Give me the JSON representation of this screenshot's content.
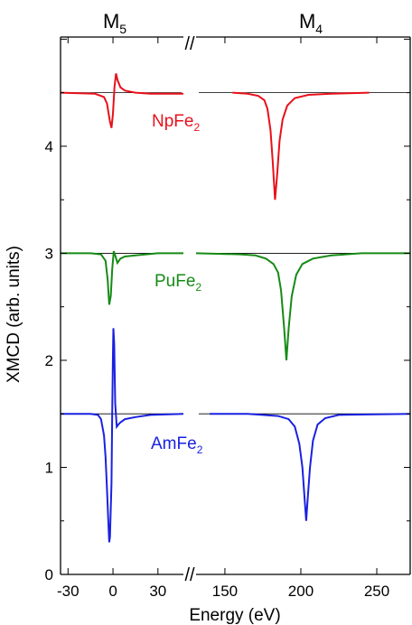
{
  "chart_data": {
    "type": "line",
    "title": "",
    "xlabel": "Energy (eV)",
    "ylabel": "XMCD (arb. units)",
    "edge_labels": {
      "left": "M",
      "left_sub": "5",
      "right": "M",
      "right_sub": "4"
    },
    "axis_break": "//",
    "panels": [
      {
        "name": "M5",
        "xlim": [
          -35,
          47
        ],
        "xticks": [
          -30,
          0,
          30
        ]
      },
      {
        "name": "M4",
        "xlim": [
          131,
          272
        ],
        "xticks": [
          150,
          200,
          250
        ]
      }
    ],
    "ylim": [
      0,
      5.02
    ],
    "yticks": [
      0,
      1,
      2,
      3,
      4
    ],
    "grid": false,
    "series": [
      {
        "name": "NpFe",
        "name_sub": "2",
        "color": "#e8101a",
        "baseline": 4.5,
        "m5": [
          [
            -35,
            4.5
          ],
          [
            -12,
            4.49
          ],
          [
            -6,
            4.46
          ],
          [
            -4,
            4.4
          ],
          [
            -2,
            4.23
          ],
          [
            -1,
            4.17
          ],
          [
            0,
            4.3
          ],
          [
            1,
            4.55
          ],
          [
            2,
            4.68
          ],
          [
            3,
            4.62
          ],
          [
            5,
            4.55
          ],
          [
            8,
            4.52
          ],
          [
            15,
            4.5
          ],
          [
            25,
            4.49
          ],
          [
            47,
            4.49
          ]
        ],
        "m4": [
          [
            155,
            4.5
          ],
          [
            165,
            4.49
          ],
          [
            172,
            4.47
          ],
          [
            176,
            4.43
          ],
          [
            178,
            4.35
          ],
          [
            180,
            4.15
          ],
          [
            181.5,
            3.85
          ],
          [
            183,
            3.5
          ],
          [
            184.5,
            3.75
          ],
          [
            186,
            4.05
          ],
          [
            188,
            4.25
          ],
          [
            191,
            4.38
          ],
          [
            196,
            4.45
          ],
          [
            205,
            4.48
          ],
          [
            220,
            4.49
          ],
          [
            245,
            4.5
          ]
        ]
      },
      {
        "name": "PuFe",
        "name_sub": "2",
        "color": "#168a16",
        "baseline": 3.0,
        "m5": [
          [
            -35,
            3.0
          ],
          [
            -15,
            3.0
          ],
          [
            -8,
            2.99
          ],
          [
            -5,
            2.93
          ],
          [
            -3.5,
            2.75
          ],
          [
            -2.5,
            2.52
          ],
          [
            -1.5,
            2.6
          ],
          [
            -0.5,
            2.85
          ],
          [
            0.5,
            3.02
          ],
          [
            1.5,
            2.98
          ],
          [
            3,
            2.91
          ],
          [
            5,
            2.95
          ],
          [
            8,
            2.97
          ],
          [
            15,
            2.98
          ],
          [
            30,
            3.0
          ],
          [
            47,
            3.0
          ]
        ],
        "m4": [
          [
            131,
            3.0
          ],
          [
            160,
            2.99
          ],
          [
            170,
            2.98
          ],
          [
            177,
            2.95
          ],
          [
            182,
            2.9
          ],
          [
            185,
            2.82
          ],
          [
            187,
            2.65
          ],
          [
            189,
            2.3
          ],
          [
            190.5,
            2.0
          ],
          [
            192,
            2.3
          ],
          [
            194,
            2.6
          ],
          [
            197,
            2.8
          ],
          [
            201,
            2.9
          ],
          [
            208,
            2.95
          ],
          [
            220,
            2.98
          ],
          [
            240,
            3.0
          ],
          [
            272,
            3.0
          ]
        ]
      },
      {
        "name": "AmFe",
        "name_sub": "2",
        "color": "#1a21e0",
        "baseline": 1.5,
        "m5": [
          [
            -35,
            1.5
          ],
          [
            -15,
            1.5
          ],
          [
            -10,
            1.49
          ],
          [
            -8,
            1.45
          ],
          [
            -6,
            1.3
          ],
          [
            -5,
            1.1
          ],
          [
            -4,
            0.8
          ],
          [
            -3,
            0.45
          ],
          [
            -2.5,
            0.3
          ],
          [
            -2,
            0.35
          ],
          [
            -1,
            0.85
          ],
          [
            -0.5,
            1.5
          ],
          [
            0,
            2.05
          ],
          [
            0.3,
            2.3
          ],
          [
            0.8,
            2.15
          ],
          [
            1.5,
            1.6
          ],
          [
            2.5,
            1.38
          ],
          [
            3.5,
            1.4
          ],
          [
            5,
            1.42
          ],
          [
            8,
            1.45
          ],
          [
            15,
            1.47
          ],
          [
            25,
            1.49
          ],
          [
            47,
            1.5
          ]
        ],
        "m4": [
          [
            140,
            1.5
          ],
          [
            165,
            1.5
          ],
          [
            175,
            1.49
          ],
          [
            185,
            1.48
          ],
          [
            192,
            1.45
          ],
          [
            196,
            1.38
          ],
          [
            199,
            1.22
          ],
          [
            201,
            1.0
          ],
          [
            202.5,
            0.7
          ],
          [
            203.5,
            0.5
          ],
          [
            204.5,
            0.7
          ],
          [
            206,
            1.0
          ],
          [
            208,
            1.25
          ],
          [
            211,
            1.4
          ],
          [
            216,
            1.46
          ],
          [
            225,
            1.49
          ],
          [
            272,
            1.5
          ]
        ]
      }
    ]
  }
}
